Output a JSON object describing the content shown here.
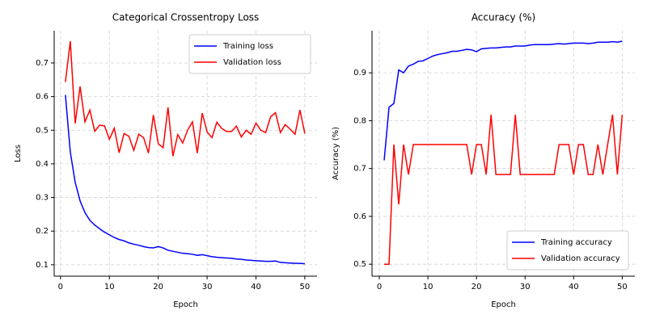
{
  "chart_data": [
    {
      "type": "line",
      "title": "Categorical Crossentropy Loss",
      "x_label": "Epoch",
      "y_label": "Loss",
      "x": [
        1,
        2,
        3,
        4,
        5,
        6,
        7,
        8,
        9,
        10,
        11,
        12,
        13,
        14,
        15,
        16,
        17,
        18,
        19,
        20,
        21,
        22,
        23,
        24,
        25,
        26,
        27,
        28,
        29,
        30,
        31,
        32,
        33,
        34,
        35,
        36,
        37,
        38,
        39,
        40,
        41,
        42,
        43,
        44,
        45,
        46,
        47,
        48,
        49,
        50
      ],
      "series": [
        {
          "name": "Training loss",
          "color": "#0000ff",
          "values": [
            0.605,
            0.435,
            0.345,
            0.29,
            0.255,
            0.232,
            0.218,
            0.207,
            0.197,
            0.189,
            0.181,
            0.175,
            0.171,
            0.165,
            0.161,
            0.158,
            0.154,
            0.151,
            0.15,
            0.154,
            0.15,
            0.143,
            0.14,
            0.137,
            0.134,
            0.133,
            0.131,
            0.128,
            0.13,
            0.127,
            0.124,
            0.122,
            0.121,
            0.12,
            0.119,
            0.117,
            0.116,
            0.114,
            0.113,
            0.112,
            0.111,
            0.11,
            0.11,
            0.111,
            0.107,
            0.106,
            0.105,
            0.104,
            0.104,
            0.103
          ]
        },
        {
          "name": "Validation loss",
          "color": "#ff0000",
          "values": [
            0.643,
            0.765,
            0.52,
            0.63,
            0.525,
            0.56,
            0.497,
            0.515,
            0.513,
            0.473,
            0.506,
            0.433,
            0.49,
            0.482,
            0.44,
            0.488,
            0.478,
            0.432,
            0.545,
            0.46,
            0.448,
            0.568,
            0.423,
            0.487,
            0.462,
            0.5,
            0.525,
            0.432,
            0.551,
            0.495,
            0.478,
            0.524,
            0.505,
            0.496,
            0.496,
            0.512,
            0.48,
            0.5,
            0.488,
            0.521,
            0.5,
            0.493,
            0.54,
            0.552,
            0.493,
            0.517,
            0.503,
            0.488,
            0.56,
            0.49
          ]
        }
      ],
      "xlim": [
        -1.3,
        52.5
      ],
      "xticks": [
        0,
        10,
        20,
        30,
        40,
        50
      ],
      "ylim": [
        0.066,
        0.796
      ],
      "yticks": [
        0.1,
        0.2,
        0.3,
        0.4,
        0.5,
        0.6,
        0.7
      ],
      "grid": true,
      "legend": "upper right"
    },
    {
      "type": "line",
      "title": "Accuracy (%)",
      "x_label": "Epoch",
      "y_label": "Accuracy (%)",
      "x": [
        1,
        2,
        3,
        4,
        5,
        6,
        7,
        8,
        9,
        10,
        11,
        12,
        13,
        14,
        15,
        16,
        17,
        18,
        19,
        20,
        21,
        22,
        23,
        24,
        25,
        26,
        27,
        28,
        29,
        30,
        31,
        32,
        33,
        34,
        35,
        36,
        37,
        38,
        39,
        40,
        41,
        42,
        43,
        44,
        45,
        46,
        47,
        48,
        49,
        50
      ],
      "series": [
        {
          "name": "Training accuracy",
          "color": "#0000ff",
          "values": [
            0.717,
            0.828,
            0.836,
            0.906,
            0.9,
            0.914,
            0.918,
            0.924,
            0.925,
            0.93,
            0.935,
            0.938,
            0.94,
            0.942,
            0.945,
            0.945,
            0.947,
            0.949,
            0.948,
            0.944,
            0.95,
            0.951,
            0.952,
            0.952,
            0.953,
            0.954,
            0.954,
            0.956,
            0.956,
            0.956,
            0.958,
            0.959,
            0.959,
            0.959,
            0.959,
            0.96,
            0.961,
            0.96,
            0.961,
            0.962,
            0.962,
            0.962,
            0.961,
            0.962,
            0.964,
            0.964,
            0.964,
            0.965,
            0.964,
            0.966
          ]
        },
        {
          "name": "Validation accuracy",
          "color": "#ff0000",
          "values": [
            0.5,
            0.5,
            0.75,
            0.625,
            0.75,
            0.6875,
            0.75,
            0.75,
            0.75,
            0.75,
            0.75,
            0.75,
            0.75,
            0.75,
            0.75,
            0.75,
            0.75,
            0.75,
            0.6875,
            0.75,
            0.75,
            0.6875,
            0.8125,
            0.6875,
            0.6875,
            0.6875,
            0.6875,
            0.8125,
            0.6875,
            0.6875,
            0.6875,
            0.6875,
            0.6875,
            0.6875,
            0.6875,
            0.6875,
            0.75,
            0.75,
            0.75,
            0.6875,
            0.75,
            0.75,
            0.6875,
            0.6875,
            0.75,
            0.6875,
            0.75,
            0.8125,
            0.6875,
            0.8125
          ]
        }
      ],
      "xlim": [
        -1.5,
        52.6
      ],
      "xticks": [
        0,
        10,
        20,
        30,
        40,
        50
      ],
      "ylim": [
        0.475,
        0.988
      ],
      "yticks": [
        0.5,
        0.6,
        0.7,
        0.8,
        0.9
      ],
      "grid": true,
      "legend": "lower right"
    }
  ]
}
